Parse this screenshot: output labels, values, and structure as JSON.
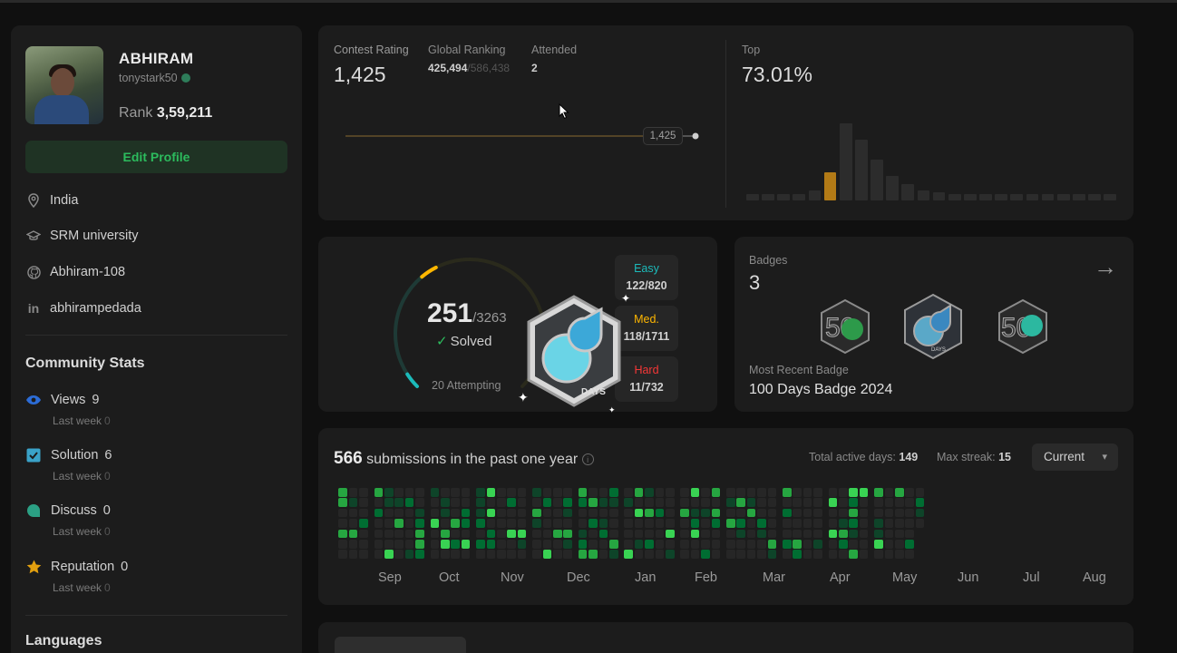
{
  "profile": {
    "name": "ABHIRAM",
    "handle": "tonystark50",
    "rank_label": "Rank",
    "rank_value": "3,59,211",
    "edit_label": "Edit Profile",
    "location": "India",
    "school": "SRM university",
    "github": "Abhiram-108",
    "linkedin": "abhirampedada"
  },
  "community": {
    "title": "Community Stats",
    "stats": [
      {
        "label": "Views",
        "value": "9",
        "sub": "Last week",
        "sub_value": "0"
      },
      {
        "label": "Solution",
        "value": "6",
        "sub": "Last week",
        "sub_value": "0"
      },
      {
        "label": "Discuss",
        "value": "0",
        "sub": "Last week",
        "sub_value": "0"
      },
      {
        "label": "Reputation",
        "value": "0",
        "sub": "Last week",
        "sub_value": "0"
      }
    ]
  },
  "languages": {
    "title": "Languages"
  },
  "contest": {
    "rating_label": "Contest Rating",
    "rating_value": "1,425",
    "global_label": "Global Ranking",
    "global_value": "425,494",
    "global_total": "/586,438",
    "attended_label": "Attended",
    "attended_value": "2",
    "line_tag": "1,425",
    "top_label": "Top",
    "top_value": "73.01%"
  },
  "histogram": {
    "highlight_index": 5,
    "values": [
      3,
      3,
      3,
      3,
      5,
      14,
      38,
      30,
      20,
      12,
      8,
      5,
      4,
      3,
      3,
      3,
      3,
      3,
      3,
      3,
      3,
      3,
      3,
      3
    ],
    "colors": {
      "highlight": "#b27a16",
      "normal": "#2c2c2c"
    }
  },
  "solved": {
    "count": "251",
    "total": "/3263",
    "label": "Solved",
    "attempting": "20 Attempting",
    "ring_fraction": 0.077,
    "easy": {
      "label": "Easy",
      "value": "122/820",
      "color": "#1cbaba"
    },
    "medium": {
      "label": "Med.",
      "value": "118/1711",
      "color": "#ffb700"
    },
    "hard": {
      "label": "Hard",
      "value": "11/732",
      "color": "#f63737"
    },
    "badge_text": "DAYS"
  },
  "badges": {
    "label": "Badges",
    "count": "3",
    "recent_label": "Most Recent Badge",
    "recent_value": "100 Days Badge 2024",
    "badge_texts": [
      "50",
      "DAYS",
      "50"
    ]
  },
  "submissions": {
    "count": "566",
    "text": "submissions in the past one year",
    "active_label": "Total active days:",
    "active_value": "149",
    "streak_label": "Max streak:",
    "streak_value": "15",
    "dropdown": "Current",
    "months": [
      "Sep",
      "Oct",
      "Nov",
      "Dec",
      "Jan",
      "Feb",
      "Mar",
      "Apr",
      "May",
      "Jun",
      "Jul",
      "Aug"
    ]
  }
}
